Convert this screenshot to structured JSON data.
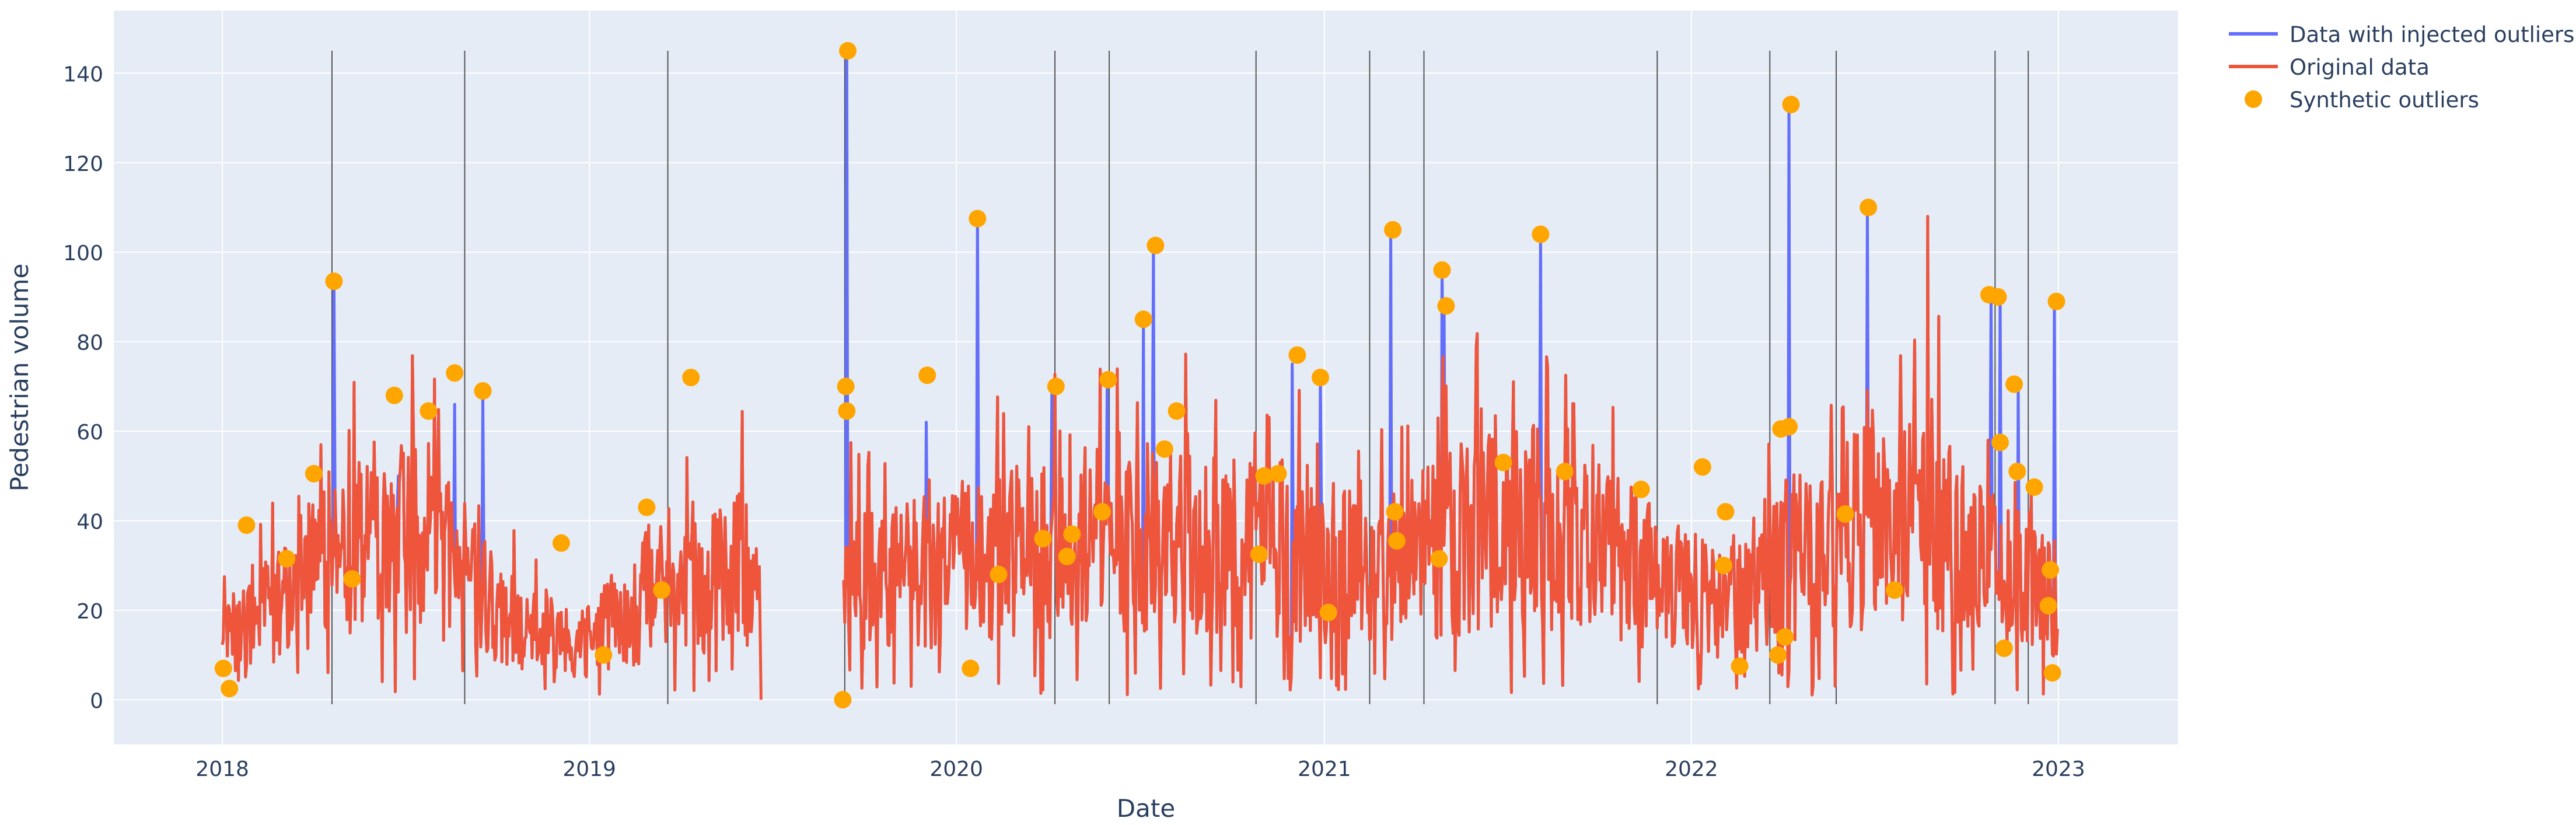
{
  "chart_data": {
    "type": "line",
    "title": "",
    "xlabel": "Date",
    "ylabel": "Pedestrian volume",
    "x_range": [
      "2017-09-15",
      "2023-04-30"
    ],
    "ylim": [
      -10,
      154
    ],
    "x_ticks": [
      "2018-01-01",
      "2019-01-01",
      "2020-01-01",
      "2021-01-01",
      "2022-01-01",
      "2023-01-01"
    ],
    "x_tick_labels": [
      "2018",
      "2019",
      "2020",
      "2021",
      "2022",
      "2023"
    ],
    "y_ticks": [
      0,
      20,
      40,
      60,
      80,
      100,
      120,
      140
    ],
    "y_tick_labels": [
      "0",
      "20",
      "40",
      "60",
      "80",
      "100",
      "120",
      "140"
    ],
    "grid": true,
    "legend_position": "top-right (outside plot)",
    "colors": {
      "plot_bg": "#E5ECF6",
      "grid": "#ffffff",
      "injected": "#636EFA",
      "original": "#EF553B",
      "outliers": "#FFA500",
      "event_lines": "#555555",
      "text": "#2a3f5f"
    },
    "legend": [
      {
        "key": "injected",
        "label": "Data with injected outliers"
      },
      {
        "key": "original",
        "label": "Original data"
      },
      {
        "key": "outliers",
        "label": "Synthetic outliers"
      }
    ],
    "vertical_lines": [
      "2018-04-20",
      "2018-08-30",
      "2019-03-20",
      "2019-09-12",
      "2020-04-08",
      "2020-06-01",
      "2020-10-25",
      "2021-02-15",
      "2021-04-10",
      "2021-11-28",
      "2022-03-20",
      "2022-05-25",
      "2022-10-30",
      "2022-12-02"
    ],
    "baseline": {
      "segments": [
        [
          "2018-01-01",
          "2019-06-19"
        ],
        [
          "2019-09-11",
          "2022-12-31"
        ]
      ],
      "envelope": [
        [
          "2018-01-01",
          14
        ],
        [
          "2018-03-01",
          25
        ],
        [
          "2018-06-01",
          42
        ],
        [
          "2018-08-01",
          40
        ],
        [
          "2018-10-01",
          22
        ],
        [
          "2018-12-15",
          14
        ],
        [
          "2019-03-01",
          24
        ],
        [
          "2019-06-19",
          35
        ],
        [
          "2019-09-11",
          30
        ],
        [
          "2019-12-01",
          32
        ],
        [
          "2020-03-01",
          38
        ],
        [
          "2020-06-01",
          38
        ],
        [
          "2020-09-01",
          40
        ],
        [
          "2020-12-01",
          36
        ],
        [
          "2021-03-01",
          35
        ],
        [
          "2021-06-01",
          42
        ],
        [
          "2021-09-01",
          45
        ],
        [
          "2021-12-01",
          30
        ],
        [
          "2022-02-01",
          25
        ],
        [
          "2022-04-01",
          35
        ],
        [
          "2022-07-01",
          45
        ],
        [
          "2022-09-01",
          45
        ],
        [
          "2022-11-01",
          33
        ],
        [
          "2022-12-31",
          25
        ]
      ],
      "max_peak": [
        "2022-08-24",
        112
      ]
    },
    "injected_spikes": [
      [
        "2018-04-22",
        93
      ],
      [
        "2018-06-25",
        50
      ],
      [
        "2018-08-20",
        66
      ],
      [
        "2018-09-17",
        68
      ],
      [
        "2019-09-14",
        145
      ],
      [
        "2019-12-02",
        62
      ],
      [
        "2020-01-22",
        108
      ],
      [
        "2020-04-05",
        70
      ],
      [
        "2020-05-30",
        72
      ],
      [
        "2020-07-05",
        85
      ],
      [
        "2020-07-15",
        101
      ],
      [
        "2020-11-30",
        75
      ],
      [
        "2020-12-28",
        72
      ],
      [
        "2021-03-08",
        105
      ],
      [
        "2021-04-28",
        96
      ],
      [
        "2021-04-30",
        88
      ],
      [
        "2021-08-04",
        104
      ],
      [
        "2022-04-08",
        133
      ],
      [
        "2022-06-25",
        110
      ],
      [
        "2022-10-26",
        90
      ],
      [
        "2022-11-04",
        90
      ],
      [
        "2022-11-22",
        70
      ],
      [
        "2022-12-28",
        89
      ]
    ],
    "outliers": [
      [
        "2018-01-02",
        7
      ],
      [
        "2018-01-08",
        2.5
      ],
      [
        "2018-01-25",
        39
      ],
      [
        "2018-03-06",
        31.5
      ],
      [
        "2018-04-02",
        50.5
      ],
      [
        "2018-04-22",
        93.5
      ],
      [
        "2018-05-10",
        27
      ],
      [
        "2018-06-21",
        68
      ],
      [
        "2018-07-25",
        64.5
      ],
      [
        "2018-08-20",
        73
      ],
      [
        "2018-09-17",
        69
      ],
      [
        "2018-12-04",
        35
      ],
      [
        "2019-01-15",
        10
      ],
      [
        "2019-02-27",
        43
      ],
      [
        "2019-03-14",
        24.5
      ],
      [
        "2019-04-12",
        72
      ],
      [
        "2019-09-10",
        0
      ],
      [
        "2019-09-13",
        70
      ],
      [
        "2019-09-14",
        64.5
      ],
      [
        "2019-09-15",
        145
      ],
      [
        "2019-12-03",
        72.5
      ],
      [
        "2020-01-15",
        7
      ],
      [
        "2020-01-22",
        107.5
      ],
      [
        "2020-02-12",
        28
      ],
      [
        "2020-03-27",
        36
      ],
      [
        "2020-04-09",
        70
      ],
      [
        "2020-04-20",
        32
      ],
      [
        "2020-04-25",
        37
      ],
      [
        "2020-05-25",
        42
      ],
      [
        "2020-05-31",
        71.5
      ],
      [
        "2020-07-05",
        85
      ],
      [
        "2020-07-17",
        101.5
      ],
      [
        "2020-07-26",
        56
      ],
      [
        "2020-08-07",
        64.5
      ],
      [
        "2020-10-28",
        32.5
      ],
      [
        "2020-11-02",
        50
      ],
      [
        "2020-11-16",
        50.5
      ],
      [
        "2020-12-05",
        77
      ],
      [
        "2020-12-28",
        72
      ],
      [
        "2021-01-05",
        19.5
      ],
      [
        "2021-03-10",
        105
      ],
      [
        "2021-03-12",
        42
      ],
      [
        "2021-03-14",
        35.5
      ],
      [
        "2021-04-25",
        31.5
      ],
      [
        "2021-04-28",
        96
      ],
      [
        "2021-05-02",
        88
      ],
      [
        "2021-06-28",
        53
      ],
      [
        "2021-08-04",
        104
      ],
      [
        "2021-08-28",
        51
      ],
      [
        "2021-11-12",
        47
      ],
      [
        "2022-01-12",
        52
      ],
      [
        "2022-02-02",
        30
      ],
      [
        "2022-02-04",
        42
      ],
      [
        "2022-02-18",
        7.5
      ],
      [
        "2022-03-28",
        10
      ],
      [
        "2022-03-31",
        60.5
      ],
      [
        "2022-04-04",
        14
      ],
      [
        "2022-04-08",
        61
      ],
      [
        "2022-04-10",
        133
      ],
      [
        "2022-06-03",
        41.5
      ],
      [
        "2022-06-26",
        110
      ],
      [
        "2022-07-22",
        24.5
      ],
      [
        "2022-10-24",
        90.5
      ],
      [
        "2022-11-02",
        90
      ],
      [
        "2022-11-04",
        57.5
      ],
      [
        "2022-11-08",
        11.5
      ],
      [
        "2022-11-18",
        70.5
      ],
      [
        "2022-11-21",
        51
      ],
      [
        "2022-12-08",
        47.5
      ],
      [
        "2022-12-22",
        21
      ],
      [
        "2022-12-24",
        29
      ],
      [
        "2022-12-26",
        6
      ],
      [
        "2022-12-30",
        89
      ]
    ]
  }
}
